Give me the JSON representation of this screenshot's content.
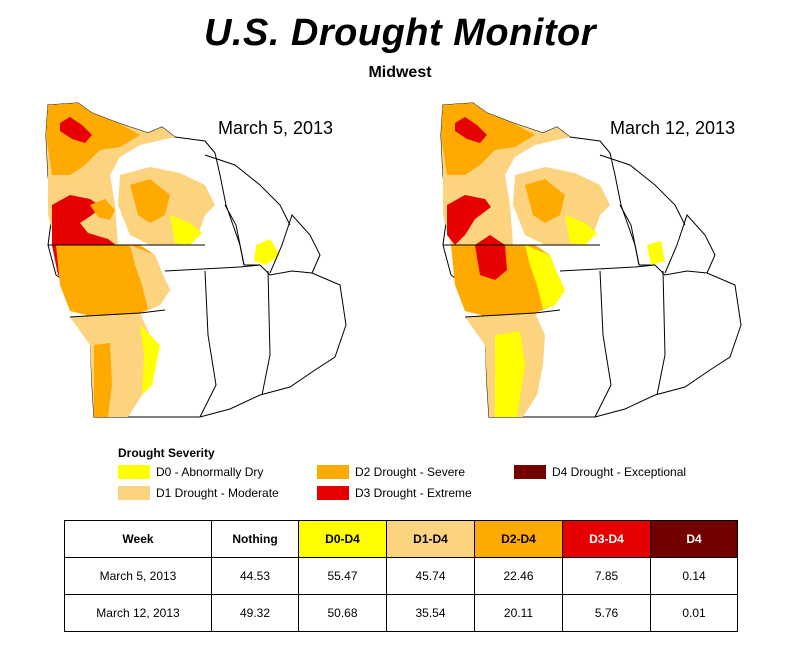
{
  "title": "U.S. Drought Monitor",
  "subtitle": "Midwest",
  "maps": [
    {
      "date": "March 5, 2013"
    },
    {
      "date": "March 12, 2013"
    }
  ],
  "legend": {
    "title": "Drought Severity",
    "items": [
      {
        "label": "D0 - Abnormally Dry",
        "color": "#ffff00"
      },
      {
        "label": "D1 Drought - Moderate",
        "color": "#fcd37f"
      },
      {
        "label": "D2 Drought - Severe",
        "color": "#ffaa00"
      },
      {
        "label": "D3 Drought - Extreme",
        "color": "#e60000"
      },
      {
        "label": "D4 Drought - Exceptional",
        "color": "#730000"
      }
    ]
  },
  "table": {
    "headers": [
      "Week",
      "Nothing",
      "D0-D4",
      "D1-D4",
      "D2-D4",
      "D3-D4",
      "D4"
    ],
    "header_colors": [
      "#ffffff",
      "#ffffff",
      "#ffff00",
      "#fcd37f",
      "#ffaa00",
      "#e60000",
      "#730000"
    ],
    "rows": [
      [
        "March 5, 2013",
        "44.53",
        "55.47",
        "45.74",
        "22.46",
        "7.85",
        "0.14"
      ],
      [
        "March 12, 2013",
        "49.32",
        "50.68",
        "35.54",
        "20.11",
        "5.76",
        "0.01"
      ]
    ]
  }
}
